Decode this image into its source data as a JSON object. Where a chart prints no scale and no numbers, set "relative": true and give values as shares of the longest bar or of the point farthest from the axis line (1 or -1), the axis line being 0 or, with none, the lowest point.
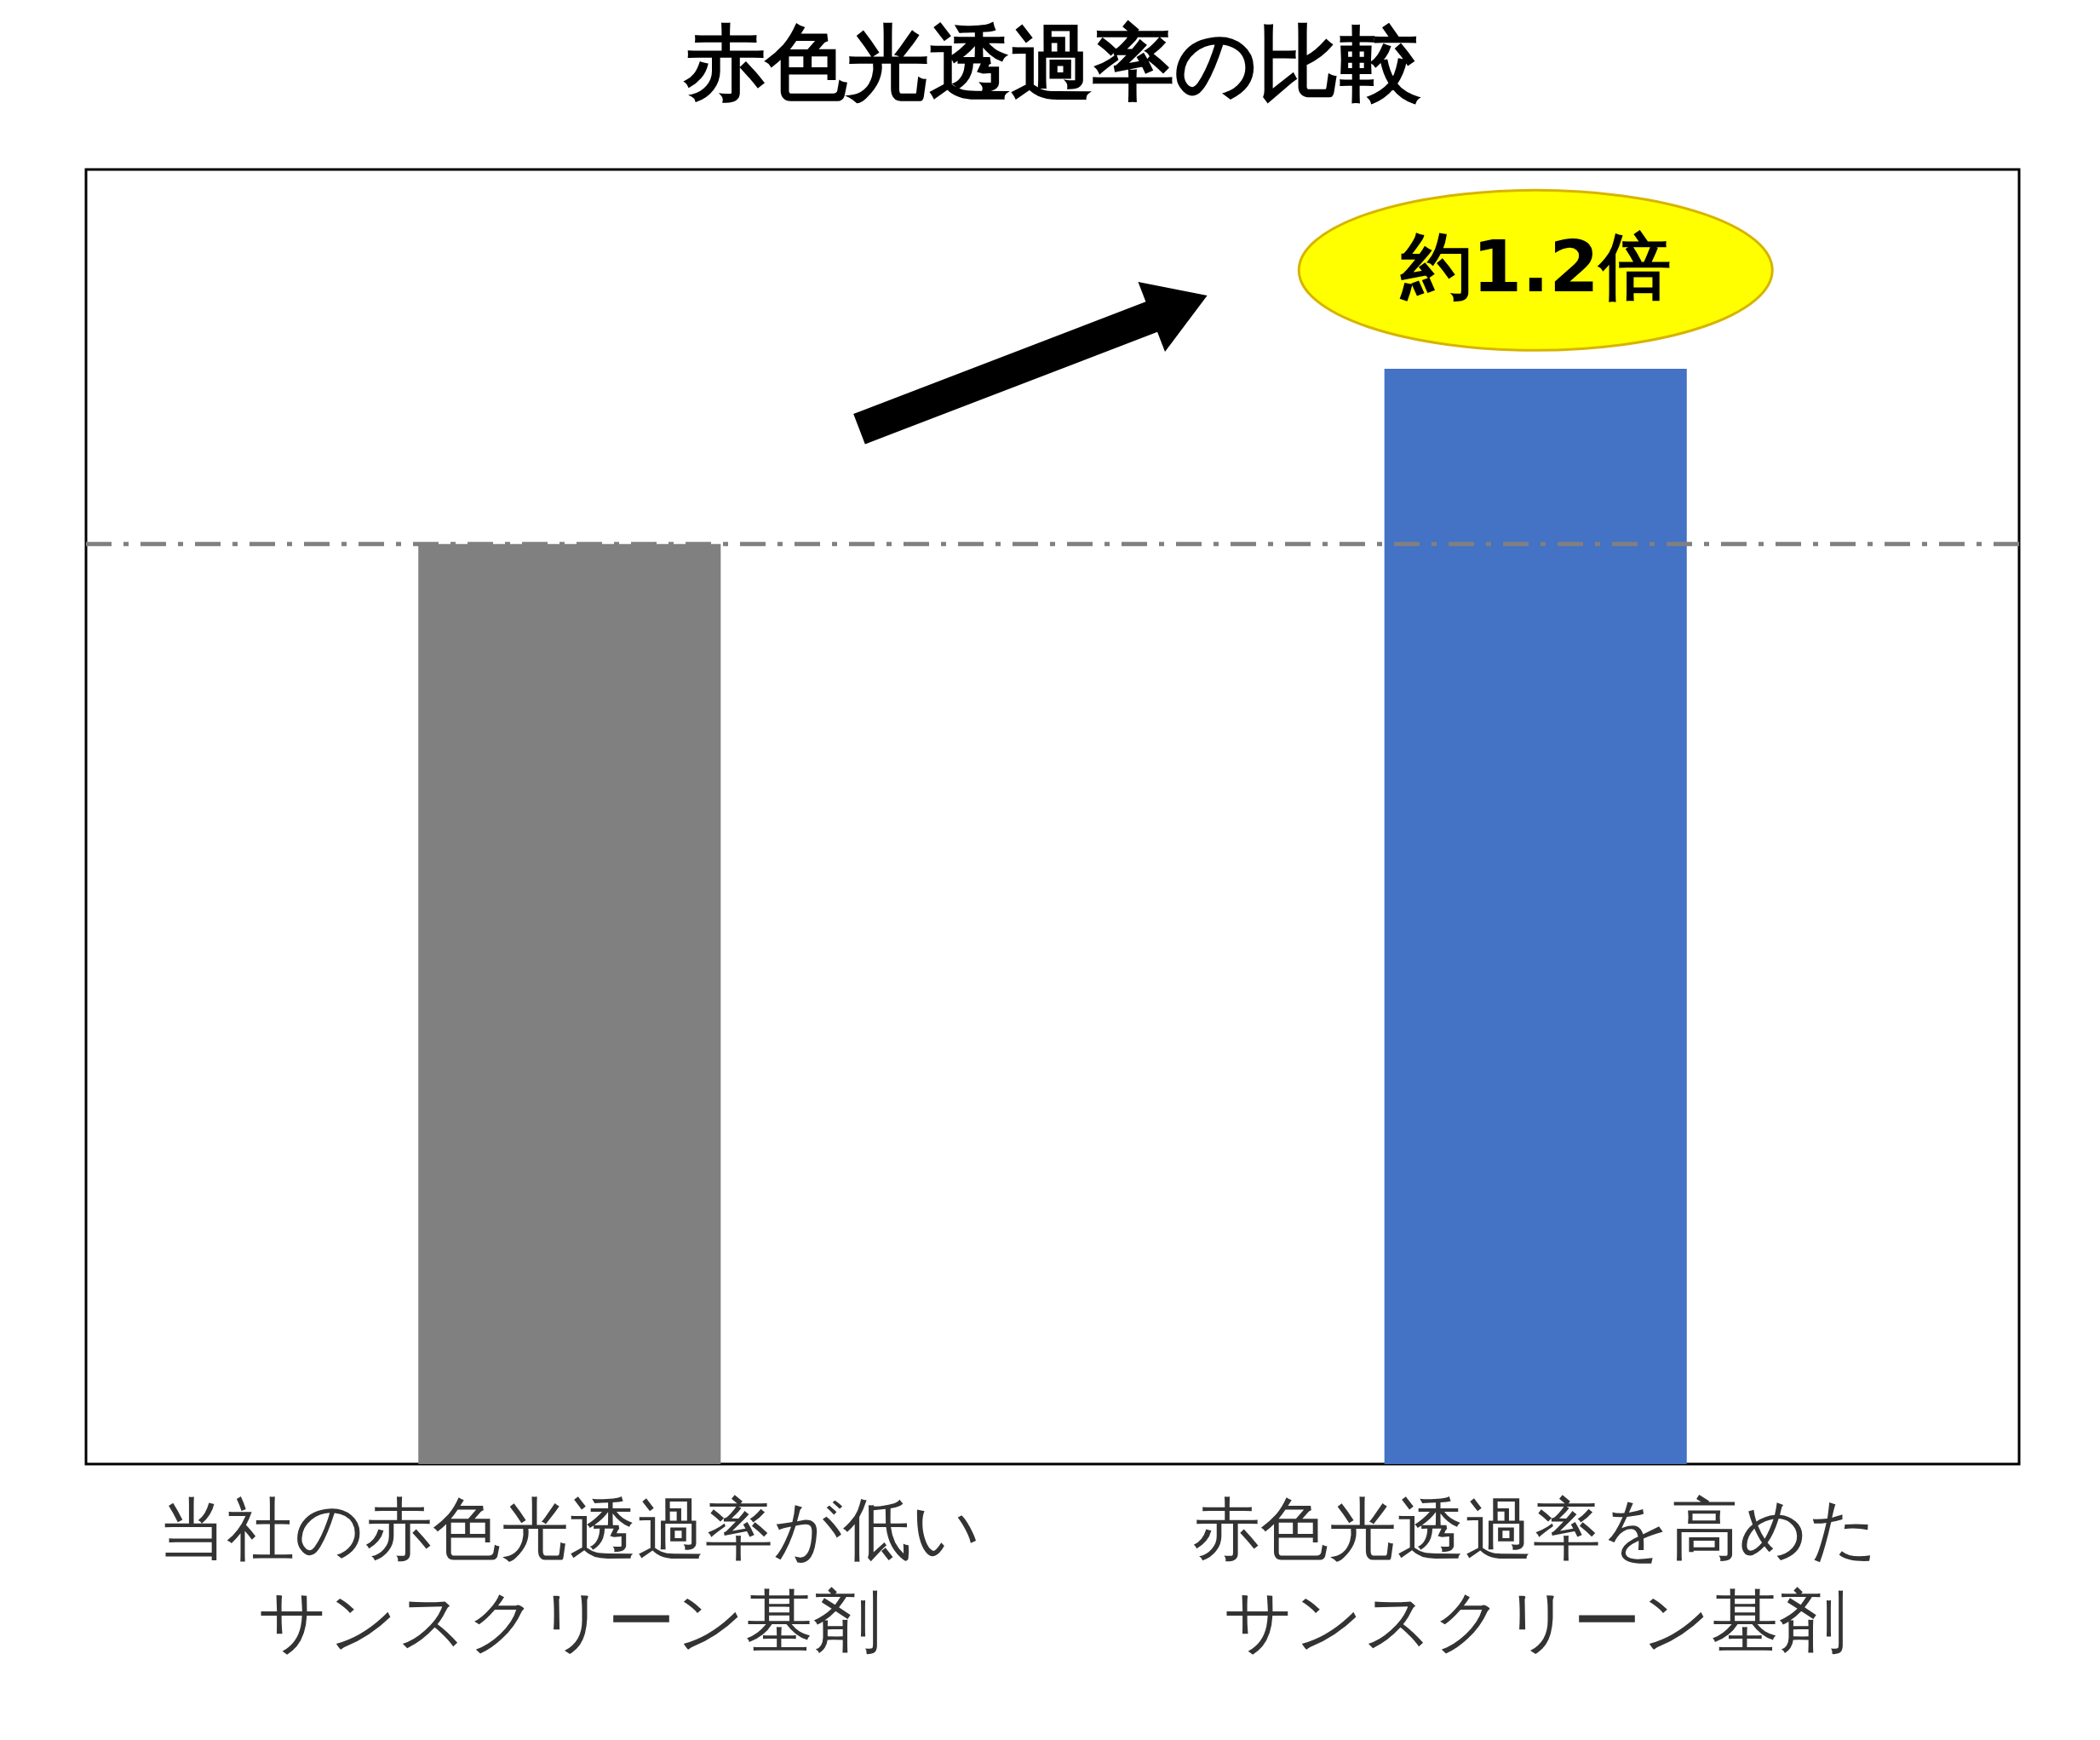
{
  "chart_data": {
    "type": "bar",
    "title": "赤色光透過率の比較",
    "categories": [
      "当社の赤色光透過率が低いサンスクリーン基剤",
      "赤色光透過率を高めたサンスクリーン基剤"
    ],
    "values": [
      0.84,
      1
    ],
    "colors": [
      "#808080",
      "#4472c4"
    ],
    "relative": true,
    "ref_lines": [
      {
        "axis": "y",
        "value": 0.84,
        "color": "#808080",
        "line_style": "dashed"
      }
    ],
    "annotations": [
      "約1.2倍"
    ]
  }
}
